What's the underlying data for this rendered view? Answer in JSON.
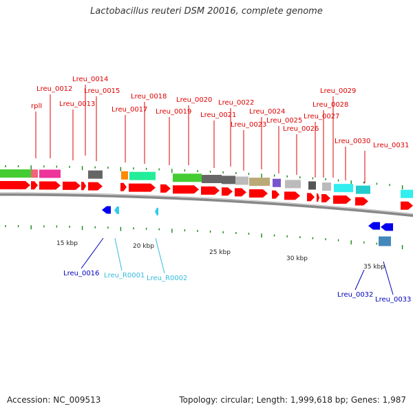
{
  "title": "Lactobacillus reuteri DSM 20016, complete genome",
  "footer": {
    "accession": "Accession: NC_009513",
    "summary": "Topology: circular; Length: 1,999,618 bp; Genes: 1,987"
  },
  "scale_labels": [
    "15 kbp",
    "20 kbp",
    "25 kbp",
    "30 kbp",
    "35 kbp"
  ],
  "colors": {
    "cds": "#ff0000",
    "rna": "#33ccee",
    "cds_minus": "#0000ee",
    "label_red": "#dd0000",
    "label_blue": "#0000bb",
    "label_cyan": "#33bbdd",
    "backbone": "#888888",
    "ticks": "#118811"
  },
  "top_labels": [
    "Lreu_0014",
    "Lreu_0012",
    "Lreu_0015",
    "Lreu_0018",
    "Lreu_0013",
    "rplI",
    "Lreu_0017",
    "Lreu_0020",
    "Lreu_0019",
    "Lreu_0022",
    "Lreu_0021",
    "Lreu_0024",
    "Lreu_0023",
    "Lreu_0025",
    "Lreu_0026",
    "Lreu_0029",
    "Lreu_0028",
    "Lreu_0027",
    "Lreu_0030",
    "Lreu_0031"
  ],
  "bottom_labels": [
    "Lreu_0016",
    "Lreu_R0001",
    "Lreu_R0002",
    "Lreu_0032",
    "Lreu_0033"
  ]
}
